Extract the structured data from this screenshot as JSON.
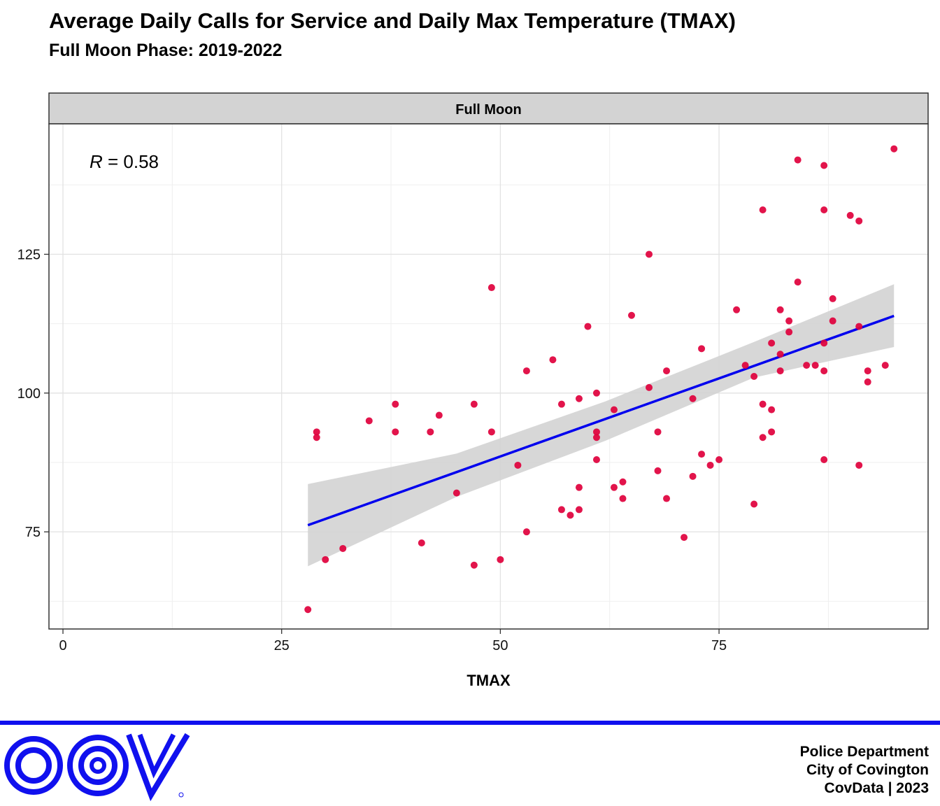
{
  "header": {
    "title": "Average Daily Calls for Service and Daily Max Temperature (TMAX)",
    "subtitle": "Full Moon Phase: 2019-2022"
  },
  "chart_data": {
    "type": "scatter",
    "facet_label": "Full Moon",
    "xlabel": "TMAX",
    "ylabel": "",
    "xlim": [
      -1.6,
      98.9
    ],
    "ylim": [
      57.5,
      148.5
    ],
    "x_ticks": [
      0,
      25,
      50,
      75
    ],
    "y_ticks": [
      75,
      100,
      125
    ],
    "grid": true,
    "annotation": {
      "variable": "R",
      "text": " = 0.58"
    },
    "point_color": "#e0003c",
    "trend_color": "#0000ee",
    "band_color": "#d3d3d3",
    "trend_line": {
      "x": [
        28,
        95
      ],
      "y": [
        76.2,
        113.9
      ]
    },
    "confidence_band": {
      "x": [
        28,
        45,
        62,
        79,
        95
      ],
      "lower": [
        68.8,
        81.3,
        91.4,
        102.8,
        108.3
      ],
      "upper": [
        83.6,
        89.1,
        98.5,
        109.2,
        119.6
      ]
    },
    "points": {
      "x": [
        28,
        29,
        29,
        30,
        32,
        35,
        38,
        38,
        41,
        42,
        43,
        45,
        47,
        47,
        49,
        49,
        50,
        52,
        53,
        53,
        56,
        57,
        57,
        58,
        59,
        59,
        59,
        60,
        61,
        61,
        61,
        61,
        63,
        63,
        64,
        64,
        65,
        67,
        67,
        68,
        68,
        69,
        69,
        71,
        72,
        72,
        73,
        73,
        74,
        75,
        77,
        78,
        79,
        79,
        80,
        80,
        80,
        81,
        81,
        81,
        82,
        82,
        82,
        83,
        83,
        84,
        84,
        85,
        86,
        87,
        87,
        87,
        87,
        87,
        88,
        88,
        90,
        91,
        91,
        91,
        92,
        92,
        94,
        95
      ],
      "y": [
        61,
        93,
        92,
        70,
        72,
        95,
        98,
        93,
        73,
        93,
        96,
        82,
        98,
        69,
        119,
        93,
        70,
        87,
        104,
        75,
        106,
        98,
        79,
        78,
        99,
        83,
        79,
        112,
        100,
        93,
        92,
        88,
        97,
        83,
        84,
        81,
        114,
        125,
        101,
        93,
        86,
        104,
        81,
        74,
        99,
        85,
        108,
        89,
        87,
        88,
        115,
        105,
        103,
        80,
        133,
        98,
        92,
        109,
        97,
        93,
        115,
        107,
        104,
        113,
        111,
        142,
        120,
        105,
        105,
        141,
        133,
        109,
        104,
        88,
        117,
        113,
        132,
        131,
        112,
        87,
        104,
        102,
        105,
        144
      ]
    }
  },
  "footer": {
    "logo_name": "cov-logo",
    "lines": [
      "Police Department",
      "City of Covington",
      "CovData | 2023"
    ]
  }
}
